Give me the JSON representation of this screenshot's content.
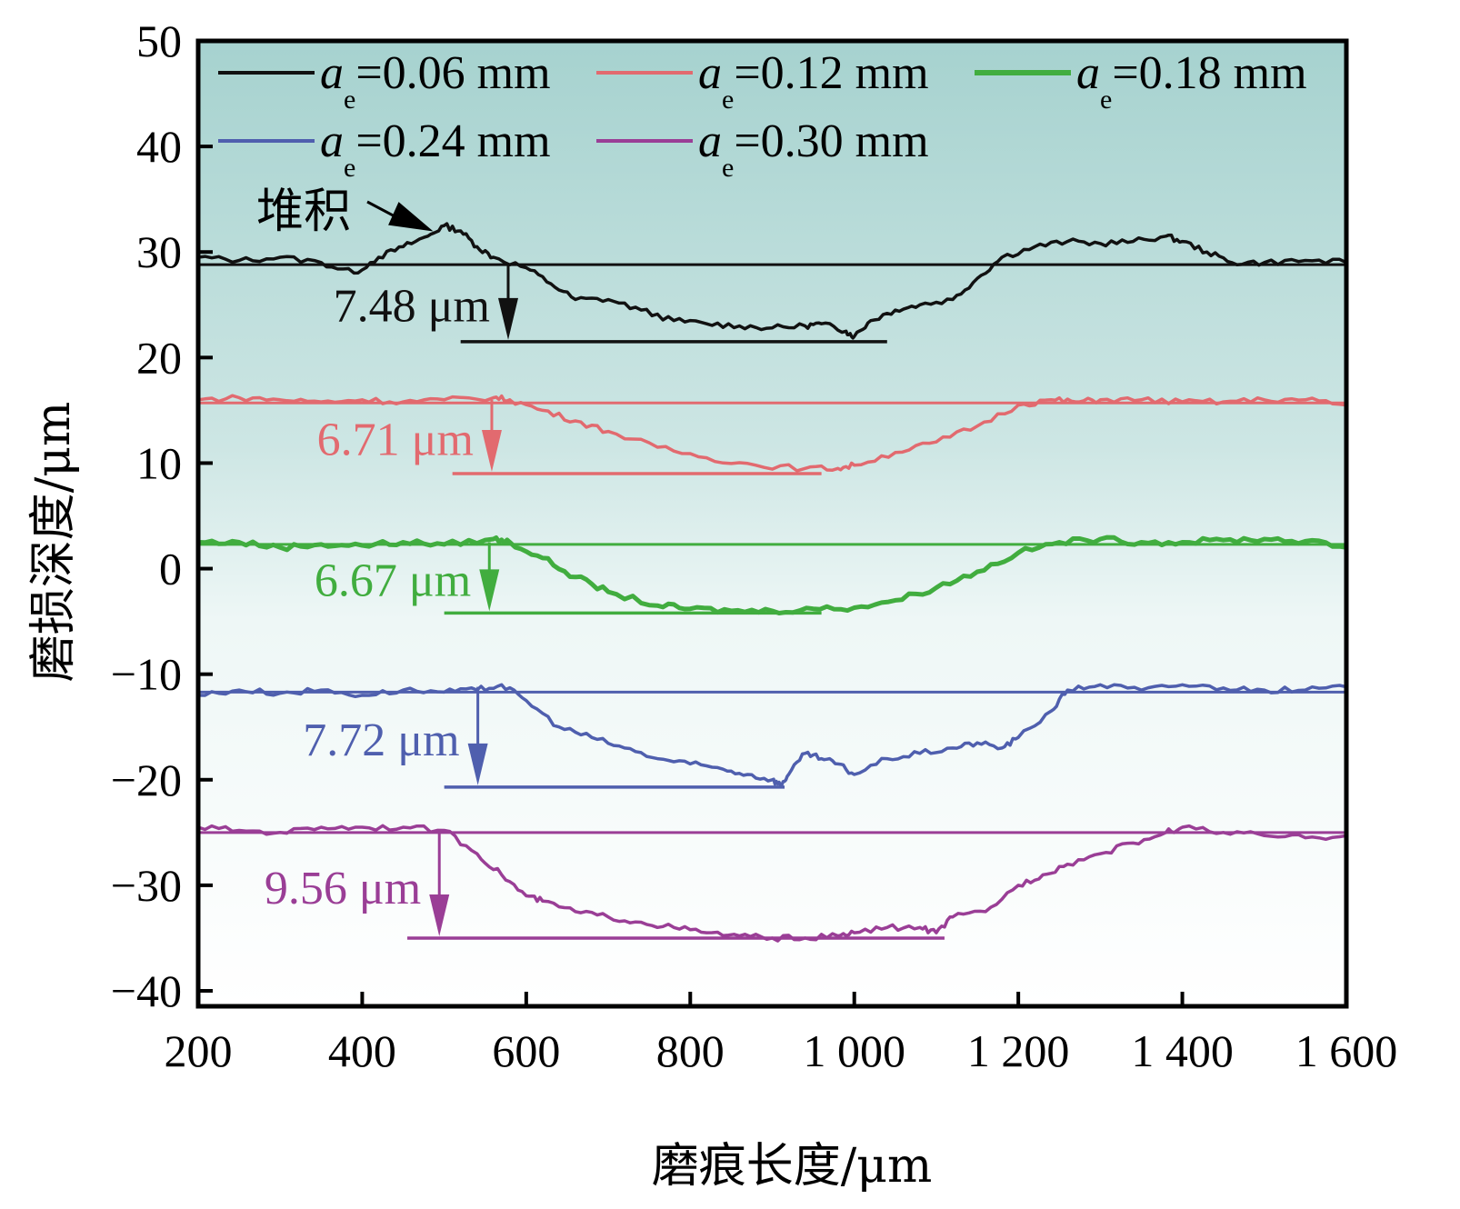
{
  "chart_data": {
    "type": "line",
    "xlabel": "磨痕长度/μm",
    "ylabel": "磨损深度/μm",
    "xlim": [
      200,
      1600
    ],
    "ylim": [
      -42,
      50
    ],
    "xticks": [
      200,
      400,
      600,
      800,
      1000,
      1200,
      1400,
      1600
    ],
    "xtick_labels": [
      "200",
      "400",
      "600",
      "800",
      "1 000",
      "1 200",
      "1 400",
      "1 600"
    ],
    "yticks": [
      50,
      40,
      30,
      20,
      10,
      0,
      -10,
      -20,
      -30,
      -40
    ],
    "ytick_labels": [
      "50",
      "40",
      "30",
      "20",
      "10",
      "0",
      "−10",
      "−20",
      "−30",
      "−40"
    ],
    "legend_symbol": "a",
    "legend_subscript": "e",
    "series": [
      {
        "name": "=0.06 mm",
        "color": "#111111",
        "x": [
          200,
          250,
          300,
          350,
          390,
          420,
          450,
          480,
          500,
          520,
          540,
          560,
          600,
          630,
          660,
          700,
          740,
          780,
          820,
          860,
          900,
          940,
          960,
          990,
          1000,
          1020,
          1050,
          1080,
          1120,
          1150,
          1180,
          1220,
          1260,
          1300,
          1340,
          1380,
          1400,
          1430,
          1460,
          1500,
          1550,
          1600
        ],
        "y": [
          29.5,
          29.2,
          29.5,
          29.0,
          28.0,
          29.5,
          30.5,
          31.5,
          32.5,
          32.0,
          30.5,
          29.5,
          28.5,
          27.0,
          25.5,
          25.5,
          24.5,
          23.5,
          23.2,
          23.0,
          22.8,
          23.0,
          23.2,
          22.5,
          22.0,
          23.5,
          24.5,
          25.0,
          25.5,
          27.5,
          29.5,
          30.5,
          31.0,
          30.8,
          31.0,
          31.5,
          31.0,
          30.0,
          29.0,
          29.0,
          29.2,
          29.0
        ],
        "baseline": 28.8,
        "bottom": 21.5,
        "arrow_x": 578,
        "arrow_top": 28.8,
        "base_x": [
          200,
          1600
        ],
        "bottom_x": [
          520,
          1040
        ],
        "depth_label": "7.48 μm"
      },
      {
        "name": "=0.12 mm",
        "color": "#e26a6f",
        "x": [
          200,
          250,
          300,
          350,
          400,
          450,
          500,
          560,
          580,
          620,
          660,
          700,
          760,
          820,
          880,
          940,
          980,
          1000,
          1050,
          1100,
          1150,
          1200,
          1240,
          1270,
          1300,
          1350,
          1400,
          1450,
          1500,
          1550,
          1600
        ],
        "y": [
          16.0,
          16.2,
          16.0,
          15.8,
          16.0,
          15.8,
          16.0,
          16.2,
          16.0,
          15.0,
          14.0,
          13.0,
          11.5,
          10.5,
          9.8,
          9.5,
          9.5,
          9.8,
          11.0,
          12.0,
          13.5,
          15.5,
          16.0,
          15.8,
          16.0,
          16.0,
          15.8,
          15.8,
          16.0,
          16.0,
          15.5
        ],
        "baseline": 15.7,
        "bottom": 9.0,
        "arrow_x": 558,
        "arrow_top": 16.0,
        "base_x": [
          200,
          1600
        ],
        "bottom_x": [
          510,
          960
        ],
        "depth_label": "6.71 μm"
      },
      {
        "name": "=0.18 mm",
        "color": "#41ad3f",
        "x": [
          200,
          250,
          300,
          350,
          400,
          450,
          500,
          560,
          580,
          620,
          660,
          700,
          760,
          800,
          850,
          900,
          950,
          1000,
          1050,
          1100,
          1150,
          1200,
          1250,
          1300,
          1350,
          1400,
          1450,
          1500,
          1550,
          1600
        ],
        "y": [
          2.5,
          2.5,
          2.0,
          2.3,
          2.2,
          2.5,
          2.3,
          2.8,
          2.5,
          1.0,
          -0.8,
          -2.2,
          -3.5,
          -3.8,
          -4.0,
          -4.0,
          -3.8,
          -3.7,
          -3.0,
          -1.8,
          -0.3,
          1.5,
          2.5,
          2.8,
          2.5,
          2.5,
          2.7,
          2.8,
          2.6,
          2.0
        ],
        "baseline": 2.3,
        "bottom": -4.2,
        "arrow_x": 555,
        "arrow_top": 2.5,
        "base_x": [
          200,
          1600
        ],
        "bottom_x": [
          500,
          960
        ],
        "depth_label": "6.67 μm"
      },
      {
        "name": "=0.24 mm",
        "color": "#4f5fae",
        "x": [
          200,
          250,
          300,
          350,
          400,
          450,
          500,
          540,
          570,
          600,
          640,
          680,
          720,
          760,
          800,
          840,
          870,
          900,
          910,
          920,
          940,
          960,
          980,
          1000,
          1040,
          1080,
          1120,
          1150,
          1180,
          1200,
          1240,
          1260,
          1300,
          1350,
          1400,
          1450,
          1500,
          1550,
          1600
        ],
        "y": [
          -12.0,
          -11.5,
          -11.8,
          -11.5,
          -12.0,
          -11.5,
          -11.7,
          -11.5,
          -11.0,
          -12.5,
          -15.0,
          -16.0,
          -17.0,
          -18.0,
          -18.5,
          -19.0,
          -19.5,
          -20.0,
          -20.5,
          -19.5,
          -17.5,
          -18.0,
          -18.5,
          -19.5,
          -18.0,
          -17.5,
          -17.0,
          -16.5,
          -17.0,
          -16.0,
          -13.5,
          -11.5,
          -11.0,
          -11.5,
          -11.0,
          -11.3,
          -11.5,
          -11.5,
          -11.2
        ],
        "baseline": -11.7,
        "bottom": -20.7,
        "arrow_x": 541,
        "arrow_top": -11.2,
        "base_x": [
          200,
          1600
        ],
        "bottom_x": [
          500,
          915
        ],
        "depth_label": "7.72 μm"
      },
      {
        "name": "=0.30 mm",
        "color": "#9a3e96",
        "x": [
          200,
          250,
          300,
          350,
          400,
          450,
          500,
          540,
          570,
          600,
          620,
          660,
          700,
          740,
          780,
          820,
          860,
          900,
          940,
          980,
          1000,
          1040,
          1080,
          1100,
          1120,
          1160,
          1200,
          1230,
          1260,
          1300,
          1340,
          1380,
          1400,
          1450,
          1500,
          1550,
          1600
        ],
        "y": [
          -24.5,
          -24.8,
          -25.0,
          -24.5,
          -24.5,
          -24.5,
          -24.8,
          -27.0,
          -29.0,
          -31.0,
          -31.5,
          -32.5,
          -33.0,
          -33.5,
          -34.0,
          -34.5,
          -34.8,
          -35.0,
          -35.0,
          -34.8,
          -34.5,
          -34.0,
          -34.0,
          -34.5,
          -33.0,
          -32.5,
          -30.0,
          -29.0,
          -28.0,
          -27.0,
          -26.0,
          -25.0,
          -24.5,
          -25.0,
          -25.3,
          -25.5,
          -25.3
        ],
        "baseline": -25.0,
        "bottom": -35.0,
        "arrow_x": 494,
        "arrow_top": -25.0,
        "base_x": [
          200,
          1600
        ],
        "bottom_x": [
          455,
          1110
        ],
        "depth_label": "9.56 μm"
      }
    ],
    "annotation": {
      "text": "堆积",
      "x": 480,
      "y": 32.3
    }
  }
}
